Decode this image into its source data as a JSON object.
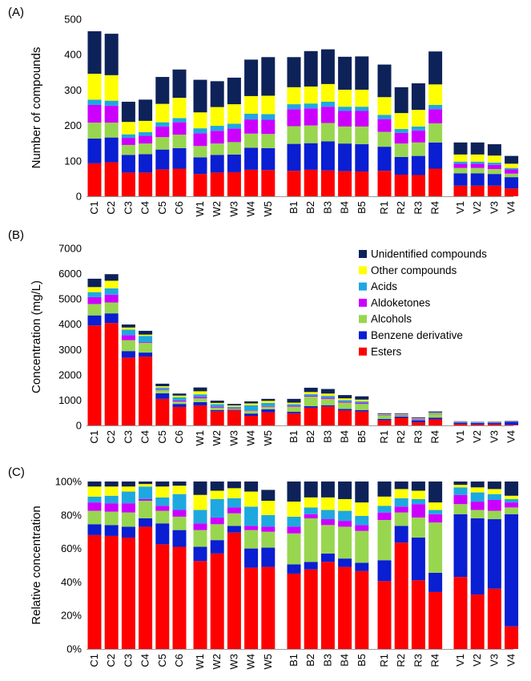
{
  "colors": {
    "Unidentified compounds": "#0d2259",
    "Other compounds": "#ffff00",
    "Acids": "#1ea8e0",
    "Aldoketones": "#cc00ff",
    "Alcohols": "#99d64f",
    "Benzene derivative": "#0a1ed2",
    "Esters": "#ff0000"
  },
  "chart_data": [
    {
      "type": "bar",
      "stacked": true,
      "panel_label": "(A)",
      "ylabel": "Number of compounds",
      "ylim": [
        0,
        500
      ],
      "yticks": [
        "0",
        "100",
        "200",
        "300",
        "400",
        "500"
      ],
      "groups": [
        [
          "C1",
          "C2",
          "C3",
          "C4",
          "C5",
          "C6"
        ],
        [
          "W1",
          "W2",
          "W3",
          "W4",
          "W5"
        ],
        [
          "B1",
          "B2",
          "B3",
          "B4",
          "B5"
        ],
        [
          "R1",
          "R2",
          "R3",
          "R4"
        ],
        [
          "V1",
          "V2",
          "V3",
          "V4"
        ]
      ],
      "series": [
        {
          "name": "Esters",
          "values": [
            93,
            96,
            67,
            67,
            76,
            78,
            63,
            67,
            68,
            75,
            74,
            72,
            75,
            73,
            71,
            70,
            72,
            61,
            60,
            78,
            30,
            30,
            30,
            22
          ]
        },
        {
          "name": "Benzene derivative",
          "values": [
            70,
            70,
            50,
            52,
            56,
            58,
            47,
            50,
            50,
            62,
            62,
            76,
            75,
            82,
            78,
            77,
            68,
            50,
            54,
            74,
            35,
            35,
            33,
            32
          ]
        },
        {
          "name": "Alcohols",
          "values": [
            45,
            42,
            28,
            30,
            35,
            38,
            32,
            32,
            35,
            40,
            40,
            50,
            50,
            52,
            48,
            50,
            42,
            38,
            38,
            54,
            15,
            15,
            14,
            10
          ]
        },
        {
          "name": "Aldoketones",
          "values": [
            50,
            48,
            20,
            22,
            30,
            35,
            36,
            36,
            38,
            40,
            40,
            48,
            48,
            46,
            44,
            44,
            36,
            30,
            34,
            40,
            12,
            12,
            12,
            12
          ]
        },
        {
          "name": "Acids",
          "values": [
            15,
            14,
            10,
            10,
            12,
            12,
            14,
            14,
            14,
            16,
            16,
            14,
            14,
            14,
            12,
            12,
            12,
            11,
            11,
            12,
            6,
            6,
            6,
            4
          ]
        },
        {
          "name": "Other compounds",
          "values": [
            73,
            72,
            35,
            32,
            52,
            57,
            45,
            53,
            55,
            50,
            52,
            48,
            48,
            50,
            48,
            48,
            50,
            45,
            47,
            58,
            20,
            20,
            20,
            12
          ]
        },
        {
          "name": "Unidentified compounds",
          "values": [
            120,
            117,
            57,
            60,
            76,
            80,
            92,
            73,
            75,
            103,
            109,
            85,
            100,
            98,
            93,
            94,
            92,
            73,
            75,
            93,
            34,
            34,
            32,
            22
          ]
        }
      ]
    },
    {
      "type": "bar",
      "stacked": true,
      "panel_label": "(B)",
      "ylabel": "Concentration (mg/L)",
      "ylim": [
        0,
        7000
      ],
      "yticks": [
        "0",
        "1000",
        "2000",
        "3000",
        "4000",
        "5000",
        "6000",
        "7000"
      ],
      "groups": [
        [
          "C1",
          "C2",
          "C3",
          "C4",
          "C5",
          "C6"
        ],
        [
          "W1",
          "W2",
          "W3",
          "W4",
          "W5"
        ],
        [
          "B1",
          "B2",
          "B3",
          "B4",
          "B5"
        ],
        [
          "R1",
          "R2",
          "R3",
          "R4"
        ],
        [
          "V1",
          "V2",
          "V3",
          "V4"
        ]
      ],
      "legend": [
        "Unidentified compounds",
        "Other compounds",
        "Acids",
        "Aldoketones",
        "Alcohols",
        "Benzene derivative",
        "Esters"
      ],
      "legend_position": "top-right",
      "series": [
        {
          "name": "Esters",
          "values": [
            3950,
            4050,
            2680,
            2720,
            1050,
            730,
            790,
            560,
            590,
            380,
            520,
            480,
            700,
            750,
            590,
            550,
            200,
            300,
            125,
            240,
            60,
            40,
            50,
            25
          ]
        },
        {
          "name": "Benzene derivative",
          "values": [
            400,
            380,
            260,
            160,
            220,
            120,
            130,
            50,
            30,
            90,
            120,
            60,
            60,
            50,
            60,
            60,
            60,
            50,
            80,
            70,
            55,
            55,
            55,
            120
          ]
        },
        {
          "name": "Alcohols",
          "values": [
            450,
            430,
            430,
            380,
            130,
            90,
            150,
            90,
            50,
            110,
            100,
            200,
            380,
            250,
            250,
            240,
            130,
            30,
            30,
            140,
            10,
            10,
            10,
            10
          ]
        },
        {
          "name": "Aldoketones",
          "values": [
            270,
            310,
            200,
            30,
            30,
            50,
            60,
            40,
            30,
            20,
            30,
            40,
            40,
            50,
            40,
            40,
            20,
            20,
            30,
            20,
            10,
            10,
            10,
            5
          ]
        },
        {
          "name": "Acids",
          "values": [
            200,
            250,
            220,
            250,
            70,
            120,
            100,
            100,
            40,
            200,
            120,
            60,
            60,
            70,
            60,
            60,
            20,
            20,
            10,
            20,
            10,
            10,
            10,
            5
          ]
        },
        {
          "name": "Other compounds",
          "values": [
            200,
            300,
            80,
            50,
            50,
            70,
            120,
            50,
            50,
            70,
            80,
            60,
            80,
            90,
            70,
            70,
            20,
            20,
            15,
            20,
            8,
            8,
            8,
            5
          ]
        },
        {
          "name": "Unidentified compounds",
          "values": [
            330,
            260,
            120,
            150,
            100,
            80,
            150,
            90,
            60,
            80,
            80,
            150,
            170,
            180,
            130,
            130,
            30,
            30,
            30,
            40,
            12,
            12,
            12,
            12
          ]
        }
      ]
    },
    {
      "type": "bar",
      "stacked": true,
      "panel_label": "(C)",
      "ylabel": "Relative concentration",
      "ylim": [
        0,
        100
      ],
      "yticks": [
        "0%",
        "20%",
        "40%",
        "60%",
        "80%",
        "100%"
      ],
      "groups": [
        [
          "C1",
          "C2",
          "C3",
          "C4",
          "C5",
          "C6"
        ],
        [
          "W1",
          "W2",
          "W3",
          "W4",
          "W5"
        ],
        [
          "B1",
          "B2",
          "B3",
          "B4",
          "B5"
        ],
        [
          "R1",
          "R2",
          "R3",
          "R4"
        ],
        [
          "V1",
          "V2",
          "V3",
          "V4"
        ]
      ],
      "series": [
        {
          "name": "Esters",
          "values": [
            68,
            67.5,
            66.5,
            73,
            62.5,
            61,
            52.5,
            57,
            69.5,
            48.5,
            49,
            45,
            47.5,
            52,
            49,
            46.5,
            40.5,
            63.5,
            41,
            34,
            43,
            32.5,
            36,
            13.5
          ]
        },
        {
          "name": "Benzene derivative",
          "values": [
            6.5,
            6.5,
            6.5,
            5,
            12.5,
            10,
            8.5,
            8,
            4,
            11.5,
            11.5,
            5.5,
            4.5,
            5,
            5,
            5,
            12.5,
            10,
            25.5,
            11.5,
            37.5,
            45.5,
            41.5,
            67
          ]
        },
        {
          "name": "Alcohols",
          "values": [
            8,
            8,
            8.5,
            10.5,
            7.5,
            8,
            10,
            9.5,
            7.5,
            11,
            9.5,
            18.5,
            26,
            17,
            19,
            19,
            24,
            8,
            12,
            30,
            6,
            5,
            5,
            4
          ]
        },
        {
          "name": "Aldoketones",
          "values": [
            5,
            5,
            5.5,
            1,
            3,
            4,
            4,
            4,
            3.5,
            2.5,
            3,
            4,
            2.5,
            3.5,
            3.5,
            3.5,
            4.5,
            3.5,
            8,
            5,
            5.5,
            5,
            6.5,
            3
          ]
        },
        {
          "name": "Acids",
          "values": [
            3.5,
            4.5,
            7,
            7.5,
            5,
            9.5,
            8,
            11,
            5.5,
            11.5,
            7,
            6,
            4,
            5.5,
            6,
            5.5,
            4,
            5,
            3,
            2.5,
            4.5,
            5.5,
            3.5,
            2
          ]
        },
        {
          "name": "Other compounds",
          "values": [
            6,
            5.5,
            3,
            1.5,
            6.5,
            5,
            9,
            5,
            6,
            9,
            8.5,
            9,
            6,
            7.5,
            7,
            8,
            5.5,
            5.5,
            5,
            4.5,
            1.5,
            3,
            3,
            2
          ]
        },
        {
          "name": "Unidentified compounds",
          "values": [
            3,
            3,
            3,
            1.5,
            3,
            2.5,
            8,
            5.5,
            4,
            6,
            6.5,
            12,
            9.5,
            9.5,
            10.5,
            12.5,
            9,
            4.5,
            5.5,
            12.5,
            2,
            3.5,
            4.5,
            8.5
          ]
        }
      ]
    }
  ]
}
